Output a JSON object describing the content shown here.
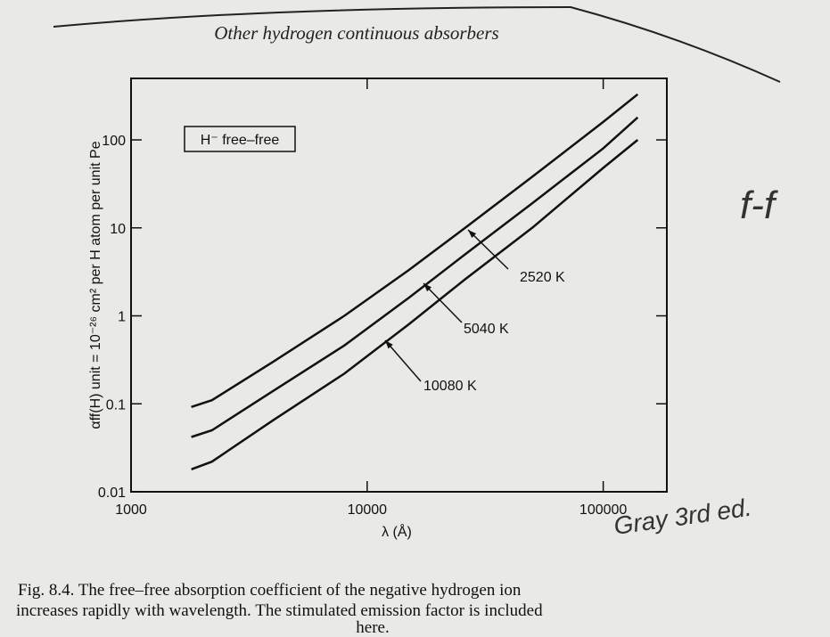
{
  "chart_data": {
    "type": "line",
    "header": "Other hydrogen continuous absorbers",
    "box_label": "H⁻ free–free",
    "xlabel": "λ (Å)",
    "ylabel": "αff(H) unit = 10⁻²⁶ cm² per H atom per unit Pe",
    "log_x": true,
    "log_y": true,
    "xlim": [
      1000,
      186000
    ],
    "ylim": [
      0.01,
      500
    ],
    "xticks": [
      1000,
      10000,
      100000
    ],
    "yticks": [
      0.01,
      0.1,
      1,
      10,
      100
    ],
    "x": [
      1800,
      2200,
      4000,
      8000,
      15000,
      26000,
      50000,
      100000,
      140000
    ],
    "series": [
      {
        "name": "2520 K",
        "color": "#111111",
        "values": [
          0.092,
          0.11,
          0.3,
          1.0,
          3.3,
          10,
          38,
          160,
          330
        ]
      },
      {
        "name": "5040 K",
        "color": "#111111",
        "values": [
          0.042,
          0.05,
          0.14,
          0.46,
          1.6,
          5,
          19,
          80,
          180
        ]
      },
      {
        "name": "10080 K",
        "color": "#111111",
        "values": [
          0.018,
          0.022,
          0.065,
          0.22,
          0.8,
          2.6,
          10,
          48,
          100
        ]
      }
    ],
    "caption": [
      "Fig. 8.4.   The free–free absorption coefficient of the negative hydrogen ion",
      "increases rapidly with wavelength. The stimulated emission factor is included",
      "here."
    ],
    "handwritten": [
      "f-f",
      "Gray 3rd ed."
    ]
  }
}
